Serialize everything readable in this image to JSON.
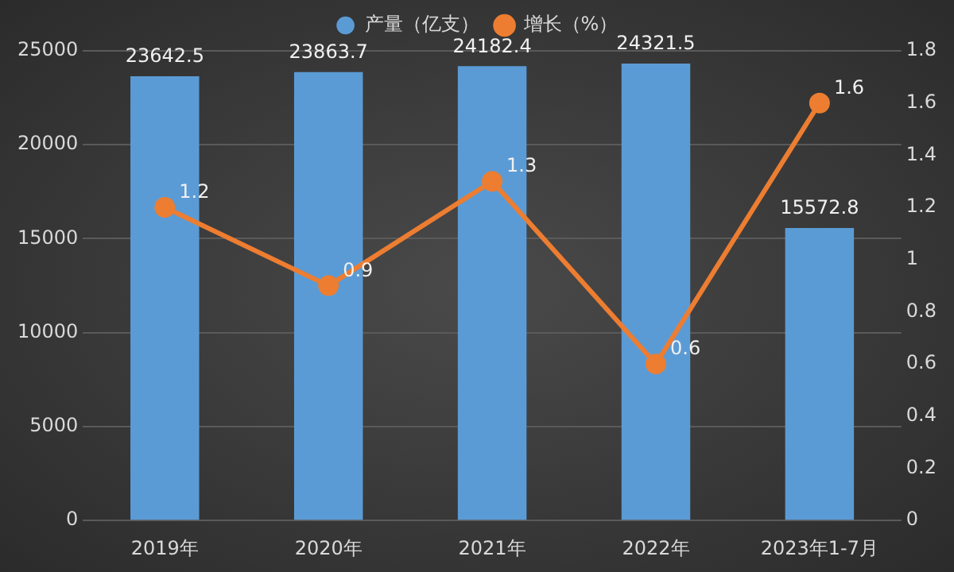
{
  "chart_data": {
    "type": "bar",
    "categories": [
      "2019年",
      "2020年",
      "2021年",
      "2022年",
      "2023年1-7月"
    ],
    "series": [
      {
        "name": "产量（亿支）",
        "color": "#5b9bd5",
        "values": [
          23642.5,
          23863.7,
          24182.4,
          24321.5,
          15572.8
        ]
      },
      {
        "name": "增长（%）",
        "type": "line",
        "axis": "y2",
        "color": "#ed7d31",
        "values": [
          1.2,
          0.9,
          1.3,
          0.6,
          1.6
        ]
      }
    ],
    "ylim": [
      0,
      25000
    ],
    "yticks": [
      0,
      5000,
      10000,
      15000,
      20000,
      25000
    ],
    "y2lim": [
      0,
      1.8
    ],
    "y2ticks": [
      0,
      0.2,
      0.4,
      0.6,
      0.8,
      1,
      1.2,
      1.4,
      1.6,
      1.8
    ],
    "grid": "y",
    "legend": "top",
    "marker": "circle",
    "data_labels": true
  }
}
